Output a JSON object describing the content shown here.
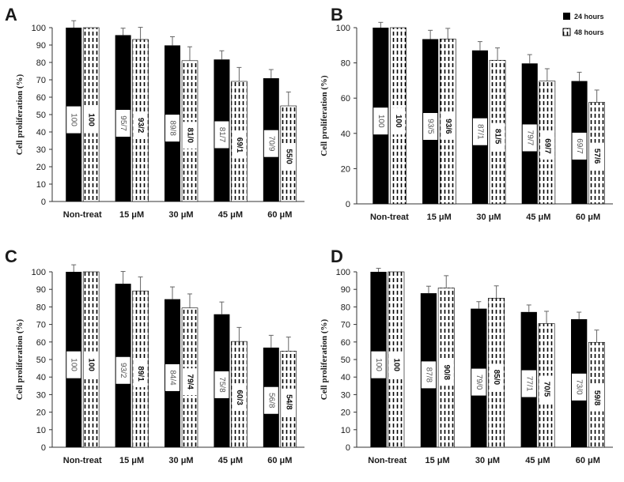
{
  "chart_data": [
    {
      "panel": "A",
      "type": "bar",
      "ylabel": "Cell proliferation (%)",
      "ylim": [
        0,
        100
      ],
      "yticks": [
        "0",
        "10",
        "20",
        "30",
        "40",
        "50",
        "60",
        "70",
        "80",
        "90",
        "100"
      ],
      "categories": [
        "Non-treat",
        "15 μM",
        "30 μM",
        "45 μM",
        "60 μM"
      ],
      "series": [
        {
          "name": "24 hours",
          "values": [
            100,
            95.7,
            89.8,
            81.7,
            70.9
          ],
          "errors": [
            4,
            4,
            5,
            5,
            5
          ],
          "labels": [
            "100",
            "95/7",
            "89/8",
            "81/7",
            "70/9"
          ]
        },
        {
          "name": "48 hours",
          "values": [
            100,
            93.2,
            81.0,
            69.1,
            55.0
          ],
          "errors": [
            0,
            7,
            8,
            8,
            8
          ],
          "labels": [
            "100",
            "93/2",
            "81/0",
            "69/1",
            "55/0"
          ]
        }
      ]
    },
    {
      "panel": "B",
      "type": "bar",
      "ylabel": "Cell proliferation (%)",
      "ylim": [
        0,
        100
      ],
      "yticks": [
        "0",
        "20",
        "40",
        "60",
        "80",
        "100"
      ],
      "categories": [
        "Non-treat",
        "15 μM",
        "30 μM",
        "45 μM",
        "60 μM"
      ],
      "series": [
        {
          "name": "24 hours",
          "values": [
            100,
            93.5,
            87.1,
            79.7,
            69.7
          ],
          "errors": [
            3,
            5,
            5,
            5,
            5
          ],
          "labels": [
            "100",
            "93/5",
            "87/1",
            "79/7",
            "69/7"
          ]
        },
        {
          "name": "48 hours",
          "values": [
            100,
            93.6,
            81.5,
            69.7,
            57.6
          ],
          "errors": [
            0,
            6,
            7,
            7,
            7
          ],
          "labels": [
            "100",
            "93/6",
            "81/5",
            "69/7",
            "57/6"
          ]
        }
      ],
      "legend": {
        "position": "top-right",
        "entries": [
          "24 hours",
          "48 hours"
        ]
      }
    },
    {
      "panel": "C",
      "type": "bar",
      "ylabel": "Cell proliferation (%)",
      "ylim": [
        0,
        100
      ],
      "yticks": [
        "0",
        "10",
        "20",
        "30",
        "40",
        "50",
        "60",
        "70",
        "80",
        "90",
        "100"
      ],
      "categories": [
        "Non-treat",
        "15 μM",
        "30 μM",
        "45 μM",
        "60 μM"
      ],
      "series": [
        {
          "name": "24 hours",
          "values": [
            100,
            93.2,
            84.4,
            75.8,
            56.8
          ],
          "errors": [
            4,
            7,
            7,
            7,
            7
          ],
          "labels": [
            "100",
            "93/2",
            "84/4",
            "75/8",
            "56/8"
          ]
        },
        {
          "name": "48 hours",
          "values": [
            100,
            89.1,
            79.4,
            60.3,
            54.8
          ],
          "errors": [
            0,
            8,
            8,
            8,
            8
          ],
          "labels": [
            "100",
            "89/1",
            "79/4",
            "60/3",
            "54/8"
          ]
        }
      ]
    },
    {
      "panel": "D",
      "type": "bar",
      "ylabel": "Cell proliferation (%)",
      "ylim": [
        0,
        100
      ],
      "yticks": [
        "0",
        "10",
        "20",
        "30",
        "40",
        "50",
        "60",
        "70",
        "80",
        "90",
        "100"
      ],
      "categories": [
        "Non-treat",
        "15 μM",
        "30 μM",
        "45 μM",
        "60 μM"
      ],
      "series": [
        {
          "name": "24 hours",
          "values": [
            100,
            87.8,
            79.0,
            77.1,
            73.0
          ],
          "errors": [
            2,
            4,
            4,
            4,
            4
          ],
          "labels": [
            "100",
            "87/8",
            "79/0",
            "77/1",
            "73/0"
          ]
        },
        {
          "name": "48 hours",
          "values": [
            100,
            90.8,
            85.0,
            70.5,
            59.8
          ],
          "errors": [
            0,
            7,
            7,
            7,
            7
          ],
          "labels": [
            "100",
            "90/8",
            "85/0",
            "70/5",
            "59/8"
          ]
        }
      ]
    }
  ],
  "colors": {
    "series_a": "#000000",
    "series_b_bg": "#ffffff",
    "series_b_dash": "#000000",
    "label_bg": "#ffffff"
  }
}
